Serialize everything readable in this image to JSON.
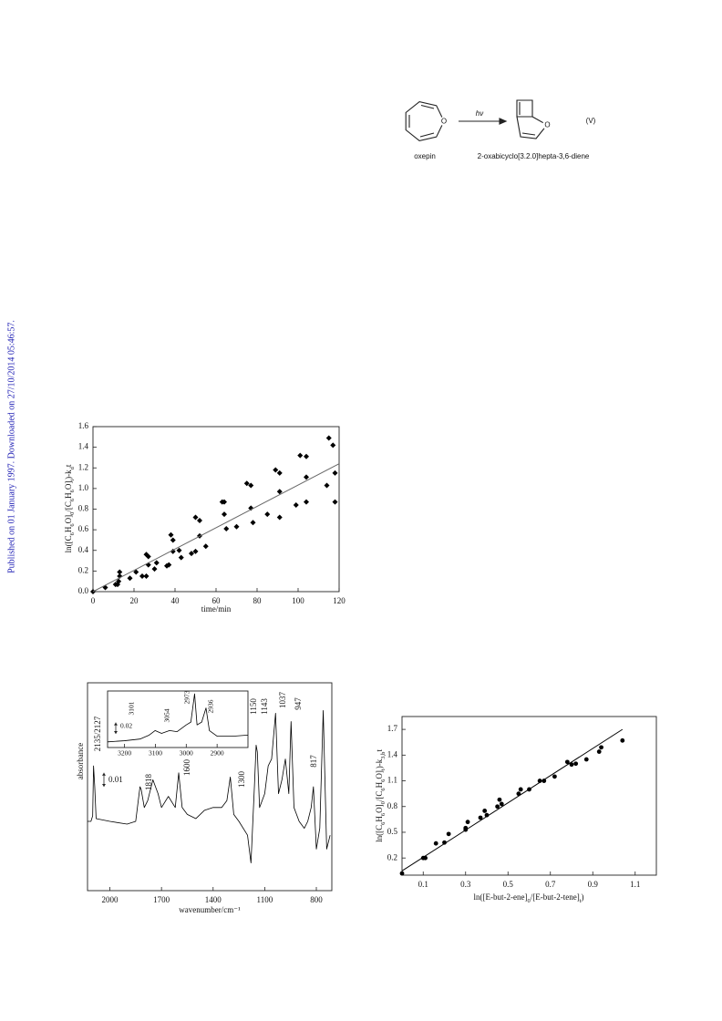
{
  "sidebar": "Published on 01 January 1997. Downloaded on 27/10/2014 05:46:57.",
  "scheme": {
    "reagent": "oxepin",
    "product": "2-oxabicyclo[3.2.0]hepta-3,6-diene",
    "condition": "hν",
    "equation_number": "(V)",
    "atoms": [
      "O",
      "O"
    ]
  },
  "chart_data": [
    {
      "type": "scatter",
      "x_label": "time/min",
      "y_label": [
        "ln([C",
        "6",
        "H",
        "6",
        "O]",
        "0",
        "/[C",
        "6",
        "H",
        "6",
        "O]",
        "t",
        ")-k",
        "d",
        "t"
      ],
      "xlim": [
        0,
        120
      ],
      "ylim": [
        0,
        1.6
      ],
      "xticks": [
        0,
        20,
        40,
        60,
        80,
        100,
        120
      ],
      "yticks": [
        {
          "value": 0,
          "label": "0.0"
        },
        0.2,
        0.4,
        0.6,
        0.8,
        {
          "value": 1,
          "label": "1.0"
        },
        1.2,
        1.4,
        1.6
      ],
      "series": [
        {
          "type": "scatter",
          "marker": "diamond",
          "color": "#000000",
          "x": [
            0,
            6,
            11,
            12,
            12.5,
            13,
            13,
            18,
            21,
            24,
            26,
            26,
            27,
            27,
            30,
            31,
            36,
            37,
            38,
            39,
            39,
            42,
            43,
            48,
            50,
            50,
            52,
            52,
            55,
            63,
            64,
            64,
            65,
            70,
            75,
            77,
            77,
            78,
            85,
            89,
            91,
            91,
            91,
            99,
            101,
            104,
            104,
            104,
            114,
            115,
            117,
            118,
            118
          ],
          "values": [
            0,
            0.04,
            0.07,
            0.07,
            0.1,
            0.15,
            0.19,
            0.13,
            0.19,
            0.15,
            0.15,
            0.36,
            0.34,
            0.26,
            0.22,
            0.28,
            0.25,
            0.26,
            0.55,
            0.5,
            0.39,
            0.4,
            0.33,
            0.37,
            0.39,
            0.72,
            0.69,
            0.54,
            0.44,
            0.87,
            0.87,
            0.75,
            0.61,
            0.63,
            1.05,
            1.03,
            0.81,
            0.67,
            0.75,
            1.18,
            1.15,
            0.97,
            0.72,
            0.84,
            1.32,
            1.31,
            1.11,
            0.87,
            1.03,
            1.49,
            1.42,
            1.15,
            0.87
          ]
        },
        {
          "type": "line",
          "color": "#666666",
          "x": [
            0,
            120
          ],
          "values": [
            0,
            1.24
          ]
        }
      ]
    },
    {
      "type": "line",
      "x_label": "wavenumber/cm⁻¹",
      "y_label": "absorbance",
      "xlim": [
        2130,
        710
      ],
      "ylim": [
        0,
        0.15
      ],
      "xticks": [
        2000,
        1700,
        1400,
        1100,
        800
      ],
      "series": [
        {
          "type": "line",
          "color": "#000000",
          "x": [
            2130,
            2110,
            2100,
            2095,
            2088,
            2080,
            2000,
            1900,
            1850,
            1825,
            1818,
            1800,
            1780,
            1750,
            1720,
            1700,
            1660,
            1620,
            1600,
            1580,
            1550,
            1500,
            1450,
            1400,
            1350,
            1320,
            1300,
            1280,
            1250,
            1200,
            1180,
            1160,
            1150,
            1143,
            1130,
            1100,
            1080,
            1060,
            1037,
            1020,
            1000,
            980,
            960,
            947,
            930,
            900,
            870,
            850,
            830,
            817,
            800,
            780,
            760,
            740,
            720
          ],
          "values": [
            0.05,
            0.05,
            0.054,
            0.09,
            0.075,
            0.052,
            0.05,
            0.048,
            0.05,
            0.075,
            0.073,
            0.06,
            0.065,
            0.08,
            0.07,
            0.06,
            0.068,
            0.06,
            0.085,
            0.06,
            0.055,
            0.052,
            0.058,
            0.06,
            0.06,
            0.065,
            0.082,
            0.055,
            0.05,
            0.04,
            0.02,
            0.075,
            0.105,
            0.1,
            0.06,
            0.07,
            0.09,
            0.095,
            0.128,
            0.07,
            0.08,
            0.095,
            0.07,
            0.122,
            0.06,
            0.05,
            0.045,
            0.05,
            0.06,
            0.075,
            0.03,
            0.045,
            0.13,
            0.03,
            0.04
          ]
        }
      ],
      "annotations": [
        "2135/2127",
        "1818",
        "1600",
        "1300",
        "1150",
        "1143",
        "1037",
        "947",
        "817"
      ],
      "scale_bar": {
        "value": 0.01,
        "label": "0.01"
      }
    },
    {
      "type": "line",
      "xlim": [
        3255,
        2800
      ],
      "ylim": [
        0,
        0.1
      ],
      "xticks": [
        3200,
        3100,
        3000,
        2900
      ],
      "series": [
        {
          "type": "line",
          "color": "#000000",
          "x": [
            3255,
            3200,
            3150,
            3120,
            3101,
            3080,
            3054,
            3030,
            3000,
            2985,
            2973,
            2965,
            2950,
            2936,
            2925,
            2900,
            2850,
            2800
          ],
          "values": [
            0.01,
            0.012,
            0.015,
            0.022,
            0.03,
            0.025,
            0.03,
            0.028,
            0.04,
            0.045,
            0.095,
            0.04,
            0.045,
            0.07,
            0.03,
            0.02,
            0.02,
            0.022
          ]
        }
      ],
      "annotations": [
        "3101",
        "3054",
        "2973",
        "2936"
      ],
      "scale_bar": {
        "value": 0.02,
        "label": "0.02"
      }
    },
    {
      "type": "scatter",
      "x_label": [
        "ln([E-but-2-ene]",
        "0",
        "/[E-but-2-tene]",
        "t",
        ")"
      ],
      "y_label": [
        "ln([C",
        "6",
        "H",
        "6",
        "O]",
        "0",
        "/[C",
        "6",
        "H",
        "6",
        "O]",
        "t",
        ")-k",
        "3,b",
        "t"
      ],
      "xlim": [
        0,
        1.2
      ],
      "ylim": [
        0,
        1.85
      ],
      "xticks": [
        0.1,
        0.3,
        0.5,
        0.7,
        0.9,
        1.1
      ],
      "yticks": [
        0.2,
        0.5,
        0.8,
        1.1,
        1.4,
        1.7
      ],
      "series": [
        {
          "type": "scatter",
          "marker": "circle",
          "color": "#000000",
          "x": [
            0,
            0.1,
            0.11,
            0.16,
            0.2,
            0.22,
            0.3,
            0.3,
            0.31,
            0.37,
            0.39,
            0.4,
            0.45,
            0.46,
            0.47,
            0.55,
            0.56,
            0.6,
            0.65,
            0.67,
            0.72,
            0.78,
            0.8,
            0.82,
            0.87,
            0.93,
            0.94,
            1.04
          ],
          "values": [
            0.02,
            0.2,
            0.2,
            0.37,
            0.38,
            0.48,
            0.53,
            0.55,
            0.62,
            0.67,
            0.75,
            0.7,
            0.8,
            0.88,
            0.83,
            0.95,
            1,
            1,
            1.1,
            1.1,
            1.15,
            1.32,
            1.29,
            1.3,
            1.35,
            1.44,
            1.49,
            1.57
          ]
        },
        {
          "type": "line",
          "color": "#000000",
          "x": [
            0,
            1.04
          ],
          "values": [
            0.05,
            1.7
          ]
        }
      ]
    }
  ]
}
